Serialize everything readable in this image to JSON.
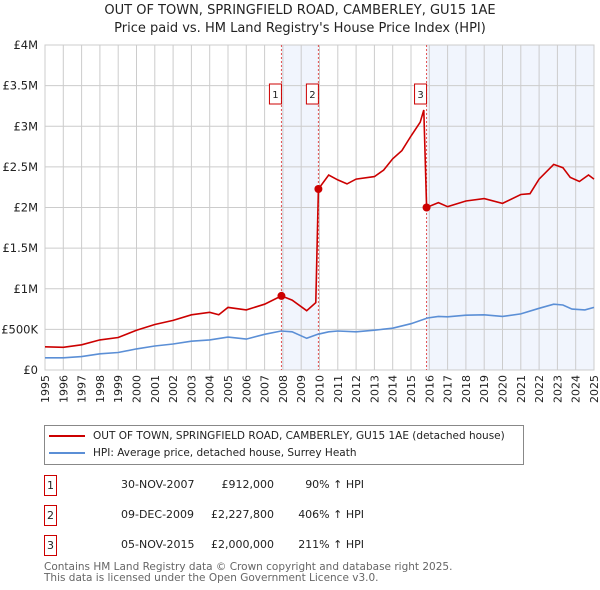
{
  "chart_data": {
    "type": "line",
    "title": "OUT OF TOWN, SPRINGFIELD ROAD, CAMBERLEY, GU15 1AE",
    "subtitle": "Price paid vs. HM Land Registry's House Price Index (HPI)",
    "xlim": [
      1995,
      2025
    ],
    "ylim": [
      0,
      4000000
    ],
    "y_ticks": [
      {
        "v": 0,
        "label": "£0"
      },
      {
        "v": 500000,
        "label": "£500K"
      },
      {
        "v": 1000000,
        "label": "£1M"
      },
      {
        "v": 1500000,
        "label": "£1.5M"
      },
      {
        "v": 2000000,
        "label": "£2M"
      },
      {
        "v": 2500000,
        "label": "£2.5M"
      },
      {
        "v": 3000000,
        "label": "£3M"
      },
      {
        "v": 3500000,
        "label": "£3.5M"
      },
      {
        "v": 4000000,
        "label": "£4M"
      }
    ],
    "x_ticks": [
      "1995",
      "1996",
      "1997",
      "1998",
      "1999",
      "2000",
      "2001",
      "2002",
      "2003",
      "2004",
      "2005",
      "2006",
      "2007",
      "2008",
      "2009",
      "2010",
      "2011",
      "2012",
      "2013",
      "2014",
      "2015",
      "2016",
      "2017",
      "2018",
      "2019",
      "2020",
      "2021",
      "2022",
      "2023",
      "2024",
      "2025"
    ],
    "grid": true,
    "shaded_ranges": [
      [
        2007.92,
        2009.94
      ],
      [
        2015.85,
        2025
      ]
    ],
    "series": [
      {
        "name": "OUT OF TOWN, SPRINGFIELD ROAD, CAMBERLEY, GU15 1AE (detached house)",
        "color": "#cc0000",
        "x": [
          1995,
          1996,
          1997,
          1998,
          1999,
          2000,
          2001,
          2002,
          2003,
          2004,
          2004.5,
          2005,
          2006,
          2007,
          2007.92,
          2008.5,
          2009.3,
          2009.8,
          2009.94,
          2010.5,
          2011,
          2011.5,
          2012,
          2013,
          2013.5,
          2014,
          2014.5,
          2015,
          2015.5,
          2015.7,
          2015.85,
          2016.5,
          2017,
          2018,
          2019,
          2020,
          2021,
          2021.5,
          2022,
          2022.8,
          2023.3,
          2023.7,
          2024.2,
          2024.7,
          2025
        ],
        "y": [
          285000,
          280000,
          310000,
          370000,
          400000,
          490000,
          560000,
          610000,
          680000,
          710000,
          680000,
          770000,
          740000,
          810000,
          912000,
          860000,
          730000,
          830000,
          2227800,
          2400000,
          2340000,
          2290000,
          2350000,
          2380000,
          2460000,
          2600000,
          2700000,
          2880000,
          3050000,
          3200000,
          2000000,
          2060000,
          2010000,
          2080000,
          2110000,
          2050000,
          2160000,
          2170000,
          2350000,
          2530000,
          2490000,
          2370000,
          2320000,
          2400000,
          2350000
        ]
      },
      {
        "name": "HPI: Average price, detached house, Surrey Heath",
        "color": "#5b8fd6",
        "x": [
          1995,
          1996,
          1997,
          1998,
          1999,
          2000,
          2001,
          2002,
          2003,
          2004,
          2005,
          2006,
          2007,
          2007.9,
          2008.5,
          2009.3,
          2009.9,
          2010.5,
          2011,
          2012,
          2013,
          2014,
          2015,
          2015.9,
          2016.5,
          2017,
          2018,
          2019,
          2020,
          2021,
          2022,
          2022.8,
          2023.3,
          2023.8,
          2024.5,
          2025
        ],
        "y": [
          150000,
          150000,
          165000,
          200000,
          215000,
          260000,
          295000,
          320000,
          355000,
          370000,
          405000,
          380000,
          440000,
          480000,
          470000,
          390000,
          440000,
          470000,
          480000,
          470000,
          490000,
          515000,
          570000,
          640000,
          660000,
          655000,
          675000,
          680000,
          660000,
          690000,
          760000,
          810000,
          800000,
          750000,
          740000,
          770000
        ]
      }
    ],
    "sales": [
      {
        "id": "1",
        "x": 2007.92,
        "y": 912000,
        "date": "30-NOV-2007",
        "price": "£912,000",
        "pct": "90% ↑ HPI"
      },
      {
        "id": "2",
        "x": 2009.94,
        "y": 2227800,
        "date": "09-DEC-2009",
        "price": "£2,227,800",
        "pct": "406% ↑ HPI"
      },
      {
        "id": "3",
        "x": 2015.85,
        "y": 2000000,
        "date": "05-NOV-2015",
        "price": "£2,000,000",
        "pct": "211% ↑ HPI"
      }
    ]
  },
  "legend": {
    "red": "OUT OF TOWN, SPRINGFIELD ROAD, CAMBERLEY, GU15 1AE (detached house)",
    "blue": "HPI: Average price, detached house, Surrey Heath"
  },
  "footer": {
    "line1": "Contains HM Land Registry data © Crown copyright and database right 2025.",
    "line2": "This data is licensed under the Open Government Licence v3.0."
  }
}
